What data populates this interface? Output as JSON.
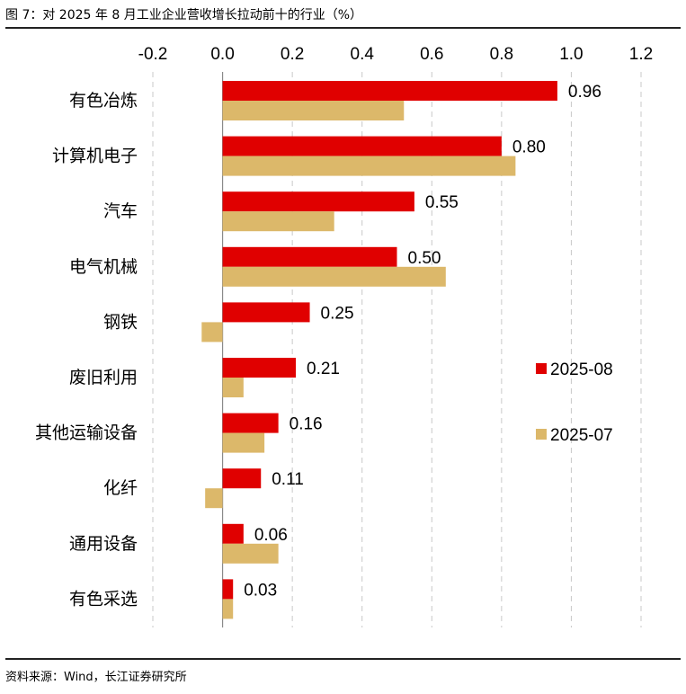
{
  "figure_title": "图 7：对 2025 年 8 月工业企业营收增长拉动前十的行业（%）",
  "source": "资料来源：Wind，长江证券研究所",
  "chart_data": {
    "type": "bar",
    "orientation": "horizontal",
    "xlim": [
      -0.2,
      1.2
    ],
    "xticks": [
      -0.2,
      0.0,
      0.2,
      0.4,
      0.6,
      0.8,
      1.0,
      1.2
    ],
    "xtick_labels": [
      "-0.2",
      "0.0",
      "0.2",
      "0.4",
      "0.6",
      "0.8",
      "1.0",
      "1.2"
    ],
    "grid": "vertical dashed",
    "legend_position": "right",
    "categories": [
      "有色冶炼",
      "计算机电子",
      "汽车",
      "电气机械",
      "钢铁",
      "废旧利用",
      "其他运输设备",
      "化纤",
      "通用设备",
      "有色采选"
    ],
    "series": [
      {
        "name": "2025-08",
        "color": "#e00000",
        "values": [
          0.96,
          0.8,
          0.55,
          0.5,
          0.25,
          0.21,
          0.16,
          0.11,
          0.06,
          0.03
        ],
        "data_labels": [
          "0.96",
          "0.80",
          "0.55",
          "0.50",
          "0.25",
          "0.21",
          "0.16",
          "0.11",
          "0.06",
          "0.03"
        ]
      },
      {
        "name": "2025-07",
        "color": "#dcb86a",
        "values": [
          0.52,
          0.84,
          0.32,
          0.64,
          -0.06,
          0.06,
          0.12,
          -0.05,
          0.16,
          0.03
        ]
      }
    ]
  }
}
